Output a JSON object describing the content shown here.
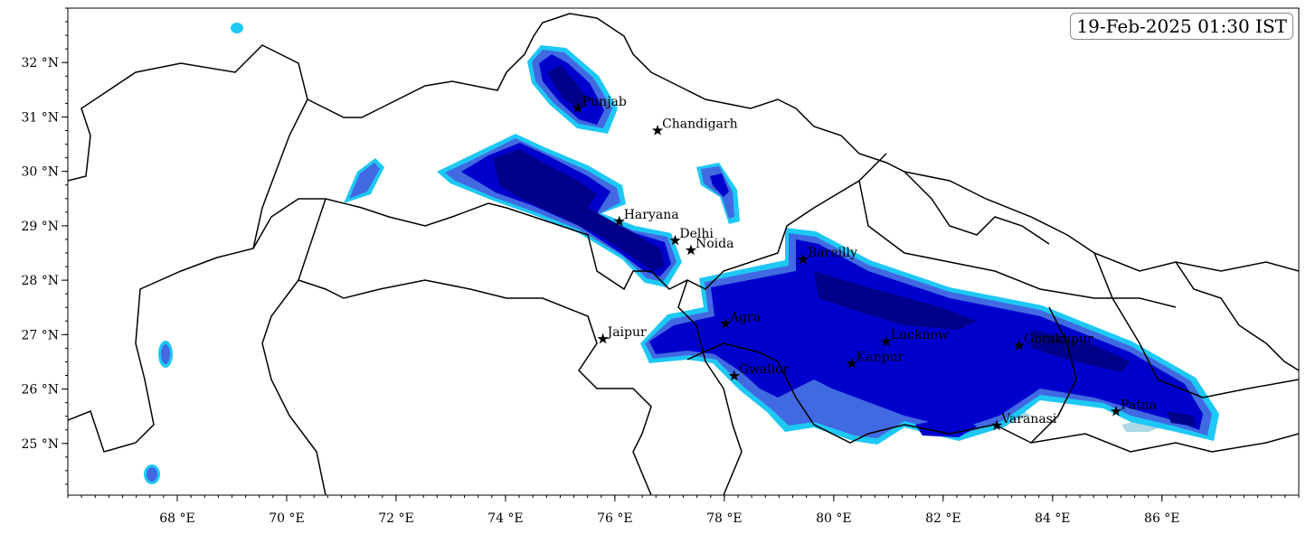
{
  "timestamp": "19-Feb-2025 01:30 IST",
  "map": {
    "extent": {
      "lon": [
        66,
        88.5
      ],
      "lat": [
        24.05,
        33
      ]
    },
    "x_ticks": [
      68,
      70,
      72,
      74,
      76,
      78,
      80,
      82,
      84,
      86
    ],
    "y_ticks": [
      25,
      26,
      27,
      28,
      29,
      30,
      31,
      32
    ],
    "x_tick_suffix": " °E",
    "y_tick_suffix": " °N",
    "shading_colors": [
      "#add8e6",
      "#1ec8f5",
      "#4169e1",
      "#0000cd",
      "#00008b"
    ],
    "boundary_color": "#000000"
  },
  "cities": [
    {
      "name": "Punjab",
      "lon": 75.32,
      "lat": 31.16
    },
    {
      "name": "Chandigarh",
      "lon": 76.78,
      "lat": 30.75
    },
    {
      "name": "Haryana",
      "lon": 76.08,
      "lat": 29.08
    },
    {
      "name": "Delhi",
      "lon": 77.1,
      "lat": 28.73
    },
    {
      "name": "Noida",
      "lon": 77.39,
      "lat": 28.55
    },
    {
      "name": "Bareilly",
      "lon": 79.44,
      "lat": 28.38
    },
    {
      "name": "Agra",
      "lon": 78.02,
      "lat": 27.2
    },
    {
      "name": "Jaipur",
      "lon": 75.78,
      "lat": 26.92
    },
    {
      "name": "Lucknow",
      "lon": 80.96,
      "lat": 26.87
    },
    {
      "name": "Kanpur",
      "lon": 80.33,
      "lat": 26.47
    },
    {
      "name": "Gwalior",
      "lon": 78.18,
      "lat": 26.24
    },
    {
      "name": "Gorakhpur",
      "lon": 83.39,
      "lat": 26.8
    },
    {
      "name": "Patna",
      "lon": 85.16,
      "lat": 25.59
    },
    {
      "name": "Varanasi",
      "lon": 82.98,
      "lat": 25.33
    }
  ]
}
